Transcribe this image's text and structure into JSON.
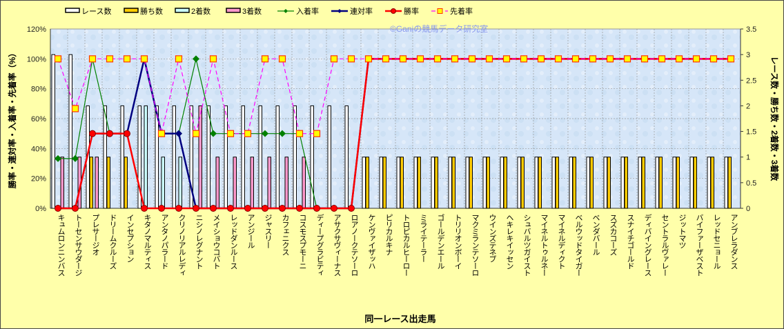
{
  "chart_data": {
    "type": "bar+line",
    "watermark": "©Ganiの競馬データ研究室",
    "xlabel": "同一レース出走馬",
    "ylabel_left": "勝率・連対率・入着率・先着率（%）",
    "ylabel_right": "レース数・勝ち数・2着数・3着数",
    "ylim_left": [
      0,
      120
    ],
    "ylim_right": [
      0,
      3.5
    ],
    "yticks_left": [
      "0%",
      "20%",
      "40%",
      "60%",
      "80%",
      "100%",
      "120%"
    ],
    "yticks_right": [
      "0",
      "0.5",
      "1",
      "1.5",
      "2",
      "2.5",
      "3",
      "3.5"
    ],
    "legend_position": "top",
    "legend": [
      "レース数",
      "勝ち数",
      "2着数",
      "3着数",
      "入着率",
      "連対率",
      "勝率",
      "先着率"
    ],
    "colors": {
      "races": "#FFFFFF",
      "wins": "#FFCC00",
      "second": "#CCFFFF",
      "third": "#FF99CC",
      "place_rate": "#008000",
      "rentai_rate": "#000080",
      "win_rate": "#FF0000",
      "sencchaku_rate": "#FF00FF"
    },
    "categories": [
      "キュムロンニンバス",
      "トーセンサウダージ",
      "プレサージオ",
      "ドリームクルーズ",
      "インセプション",
      "キタノマルティス",
      "アンタノパラード",
      "クリノリアルレディ",
      "ニシノレグナント",
      "メイショウコバト",
      "レッドダンルース",
      "アンジール",
      "ジャスリー",
      "カフェニクス",
      "コスモスプモーニ",
      "ディープグラビティ",
      "アサクサヴィーナス",
      "ロアノークテソーロ",
      "ケンヴァイザッハ",
      "ピリカルキナ",
      "トロピカルヒーロー",
      "ミライテーラー",
      "ゴールデンエール",
      "トリリオンボーイ",
      "マクミランテソーロ",
      "ウインズテネブ",
      "ヘキレキイッセン",
      "シュバルツガイスト",
      "マイネルトゥルネー",
      "マイネルディクト",
      "ベルウッドタイガー",
      "ベンダバール",
      "スズカコーズ",
      "スナイチゴールド",
      "ディバイングレース",
      "セントラルヴァレー",
      "ジットマツ",
      "バイファーザベスト",
      "レッドセニョール",
      "アンブレラダンス"
    ],
    "series": [
      {
        "name": "レース数",
        "axis": "right",
        "type": "bar",
        "values": [
          3,
          3,
          2,
          2,
          2,
          2,
          2,
          2,
          2,
          2,
          2,
          2,
          2,
          2,
          2,
          2,
          2,
          2,
          1,
          1,
          1,
          1,
          1,
          1,
          1,
          1,
          1,
          1,
          1,
          1,
          1,
          1,
          1,
          1,
          1,
          1,
          1,
          1,
          1,
          1
        ]
      },
      {
        "name": "勝ち数",
        "axis": "right",
        "type": "bar",
        "values": [
          0,
          0,
          1,
          1,
          1,
          0,
          0,
          0,
          0,
          0,
          0,
          0,
          0,
          0,
          0,
          0,
          0,
          0,
          1,
          1,
          1,
          1,
          1,
          1,
          1,
          1,
          1,
          1,
          1,
          1,
          1,
          1,
          1,
          1,
          1,
          1,
          1,
          1,
          1,
          1
        ]
      },
      {
        "name": "2着数",
        "axis": "right",
        "type": "bar",
        "values": [
          0,
          0,
          0,
          0,
          0,
          2,
          1,
          1,
          0,
          0,
          0,
          0,
          0,
          0,
          0,
          0,
          0,
          0,
          0,
          0,
          0,
          0,
          0,
          0,
          0,
          0,
          0,
          0,
          0,
          0,
          0,
          0,
          0,
          0,
          0,
          0,
          0,
          0,
          0,
          0
        ]
      },
      {
        "name": "3着数",
        "axis": "right",
        "type": "bar",
        "values": [
          1,
          1,
          1,
          0,
          0,
          0,
          0,
          0,
          2,
          1,
          1,
          1,
          1,
          1,
          1,
          0,
          0,
          0,
          0,
          0,
          0,
          0,
          0,
          0,
          0,
          0,
          0,
          0,
          0,
          0,
          0,
          0,
          0,
          0,
          0,
          0,
          0,
          0,
          0,
          0
        ]
      },
      {
        "name": "入着率",
        "axis": "left",
        "type": "line",
        "values": [
          33.3,
          33.3,
          100,
          50,
          50,
          100,
          50,
          50,
          100,
          50,
          50,
          50,
          50,
          50,
          50,
          0,
          0,
          0,
          100,
          100,
          100,
          100,
          100,
          100,
          100,
          100,
          100,
          100,
          100,
          100,
          100,
          100,
          100,
          100,
          100,
          100,
          100,
          100,
          100,
          100
        ]
      },
      {
        "name": "連対率",
        "axis": "left",
        "type": "line",
        "values": [
          0,
          0,
          50,
          50,
          50,
          100,
          50,
          50,
          0,
          0,
          0,
          0,
          0,
          0,
          0,
          0,
          0,
          0,
          100,
          100,
          100,
          100,
          100,
          100,
          100,
          100,
          100,
          100,
          100,
          100,
          100,
          100,
          100,
          100,
          100,
          100,
          100,
          100,
          100,
          100
        ]
      },
      {
        "name": "勝率",
        "axis": "left",
        "type": "line",
        "values": [
          0,
          0,
          50,
          50,
          50,
          0,
          0,
          0,
          0,
          0,
          0,
          0,
          0,
          0,
          0,
          0,
          0,
          0,
          100,
          100,
          100,
          100,
          100,
          100,
          100,
          100,
          100,
          100,
          100,
          100,
          100,
          100,
          100,
          100,
          100,
          100,
          100,
          100,
          100,
          100
        ]
      },
      {
        "name": "先着率",
        "axis": "left",
        "type": "line",
        "values": [
          100,
          66.7,
          100,
          100,
          100,
          100,
          50,
          100,
          50,
          100,
          50,
          50,
          100,
          100,
          50,
          50,
          100,
          100,
          100,
          100,
          100,
          100,
          100,
          100,
          100,
          100,
          100,
          100,
          100,
          100,
          100,
          100,
          100,
          100,
          100,
          100,
          100,
          100,
          100,
          100
        ]
      }
    ]
  }
}
